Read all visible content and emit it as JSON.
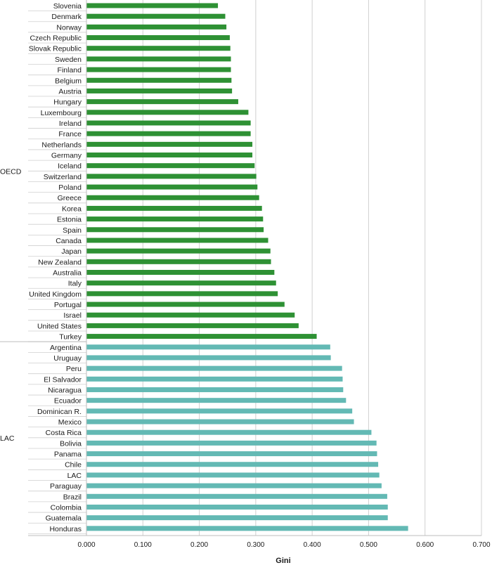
{
  "chart_data": {
    "type": "bar",
    "orientation": "horizontal",
    "xlabel": "Gini",
    "ylabel": "",
    "xlim": [
      0,
      0.7
    ],
    "x_ticks": [
      "0.000",
      "0.100",
      "0.200",
      "0.300",
      "0.400",
      "0.500",
      "0.600",
      "0.700"
    ],
    "grid": true,
    "legend": "none",
    "groups": [
      {
        "name": "OECD",
        "color": "#2e9134",
        "categories": [
          "Slovenia",
          "Denmark",
          "Norway",
          "Czech Republic",
          "Slovak Republic",
          "Sweden",
          "Finland",
          "Belgium",
          "Austria",
          "Hungary",
          "Luxembourg",
          "Ireland",
          "France",
          "Netherlands",
          "Germany",
          "Iceland",
          "Switzerland",
          "Poland",
          "Greece",
          "Korea",
          "Estonia",
          "Spain",
          "Canada",
          "Japan",
          "New Zealand",
          "Australia",
          "Italy",
          "United Kingdom",
          "Portugal",
          "Israel",
          "United States",
          "Turkey"
        ],
        "values": [
          0.233,
          0.246,
          0.248,
          0.254,
          0.255,
          0.256,
          0.256,
          0.257,
          0.258,
          0.269,
          0.287,
          0.291,
          0.291,
          0.294,
          0.294,
          0.298,
          0.301,
          0.303,
          0.306,
          0.311,
          0.313,
          0.314,
          0.322,
          0.326,
          0.327,
          0.333,
          0.336,
          0.339,
          0.351,
          0.369,
          0.376,
          0.408
        ]
      },
      {
        "name": "LAC",
        "color": "#63b9b4",
        "categories": [
          "Argentina",
          "Uruguay",
          "Peru",
          "El Salvador",
          "Nicaragua",
          "Ecuador",
          "Dominican R.",
          "Mexico",
          "Costa Rica",
          "Bolivia",
          "Panama",
          "Chile",
          "LAC",
          "Paraguay",
          "Brazil",
          "Colombia",
          "Guatemala",
          "Honduras"
        ],
        "values": [
          0.432,
          0.433,
          0.453,
          0.454,
          0.455,
          0.46,
          0.471,
          0.474,
          0.505,
          0.514,
          0.515,
          0.517,
          0.519,
          0.523,
          0.533,
          0.534,
          0.534,
          0.57
        ]
      }
    ]
  }
}
